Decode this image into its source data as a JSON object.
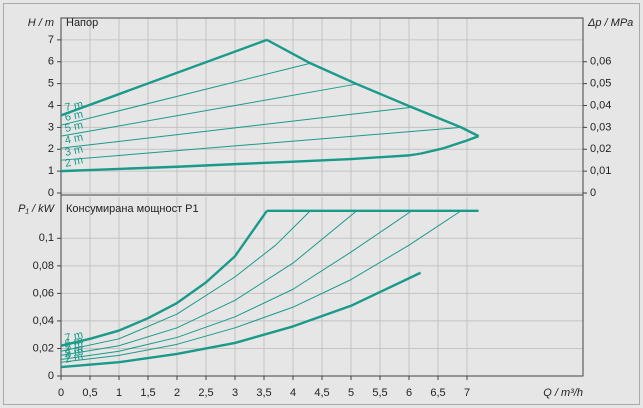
{
  "chart_data": [
    {
      "type": "line",
      "ylabel": "H / m",
      "title": "Напор",
      "y2label": "Δp / MPa",
      "xlim": [
        0,
        9
      ],
      "ylim": [
        0,
        8
      ],
      "yticks": [
        0,
        1,
        2,
        3,
        4,
        5,
        6,
        7
      ],
      "y2lim": [
        0,
        0.08
      ],
      "y2ticks": [
        0,
        {
          "value": 0.01,
          "label": "0,01"
        },
        {
          "value": 0.02,
          "label": "0,02"
        },
        {
          "value": 0.03,
          "label": "0,03"
        },
        {
          "value": 0.04,
          "label": "0,04"
        },
        {
          "value": 0.05,
          "label": "0,05"
        },
        {
          "value": 0.06,
          "label": "0,06"
        }
      ],
      "grid": true,
      "series": [
        {
          "name": "7 m",
          "color": "#1a9a8a",
          "bold": true,
          "x": [
            0,
            3.55
          ],
          "values": [
            3.55,
            7
          ]
        },
        {
          "color": "#1a9a8a",
          "bold": true,
          "x": [
            3.55,
            4.3,
            5.1,
            6.05,
            6.9,
            7.2
          ],
          "values": [
            7,
            5.93,
            4.98,
            3.92,
            3.0,
            2.6
          ]
        },
        {
          "name": "6 m",
          "color": "#1a9a8a",
          "bold": false,
          "x": [
            0,
            4.3
          ],
          "values": [
            3.1,
            5.93
          ]
        },
        {
          "name": "5 m",
          "color": "#1a9a8a",
          "bold": false,
          "x": [
            0,
            5.1
          ],
          "values": [
            2.6,
            4.98
          ]
        },
        {
          "name": "4 m",
          "color": "#1a9a8a",
          "bold": false,
          "x": [
            0,
            6.05
          ],
          "values": [
            2.05,
            3.92
          ]
        },
        {
          "name": "3 m",
          "color": "#1a9a8a",
          "bold": false,
          "x": [
            0,
            6.9
          ],
          "values": [
            1.5,
            3.0
          ]
        },
        {
          "name": "2 m",
          "color": "#1a9a8a",
          "bold": true,
          "x": [
            0,
            1,
            2,
            3,
            4,
            5,
            6,
            6.2
          ],
          "values": [
            1.0,
            1.1,
            1.2,
            1.32,
            1.43,
            1.55,
            1.72,
            1.8
          ]
        },
        {
          "color": "#1a9a8a",
          "bold": true,
          "x": [
            6.2,
            6.6,
            7.0,
            7.2
          ],
          "values": [
            1.8,
            2.05,
            2.4,
            2.6
          ]
        }
      ]
    },
    {
      "type": "line",
      "ylabel": "P₁ / kW",
      "title": "Консумирана мощност P1",
      "xlabel": "Q / m³/h",
      "xlim": [
        0,
        9
      ],
      "xticks": [
        0,
        {
          "value": 0.5,
          "label": "0,5"
        },
        1,
        {
          "value": 1.5,
          "label": "1,5"
        },
        2,
        {
          "value": 2.5,
          "label": "2,5"
        },
        3,
        {
          "value": 3.5,
          "label": "3,5"
        },
        4,
        {
          "value": 4.5,
          "label": "4,5"
        },
        5,
        {
          "value": 5.5,
          "label": "5,5"
        },
        6,
        {
          "value": 6.5,
          "label": "6,5"
        },
        7
      ],
      "ylim": [
        0,
        0.13
      ],
      "yticks": [
        0,
        {
          "value": 0.02,
          "label": "0,02"
        },
        {
          "value": 0.04,
          "label": "0,04"
        },
        {
          "value": 0.06,
          "label": "0,06"
        },
        {
          "value": 0.08,
          "label": "0,08"
        },
        {
          "value": 0.1,
          "label": "0,1"
        }
      ],
      "grid": true,
      "series": [
        {
          "name": "7 m",
          "color": "#1a9a8a",
          "bold": true,
          "x": [
            0,
            0.5,
            1,
            1.5,
            2,
            2.5,
            3,
            3.55
          ],
          "values": [
            0.022,
            0.027,
            0.033,
            0.042,
            0.053,
            0.068,
            0.087,
            0.12
          ]
        },
        {
          "color": "#1a9a8a",
          "bold": true,
          "x": [
            3.55,
            7.2
          ],
          "values": [
            0.12,
            0.12
          ]
        },
        {
          "name": "6 m",
          "color": "#1a9a8a",
          "bold": false,
          "x": [
            0,
            1,
            2,
            3,
            3.7,
            4.3
          ],
          "values": [
            0.018,
            0.027,
            0.045,
            0.072,
            0.095,
            0.12
          ]
        },
        {
          "name": "5 m",
          "color": "#1a9a8a",
          "bold": false,
          "x": [
            0,
            1,
            2,
            3,
            4,
            5.1
          ],
          "values": [
            0.015,
            0.022,
            0.035,
            0.055,
            0.082,
            0.12
          ]
        },
        {
          "name": "4 m",
          "color": "#1a9a8a",
          "bold": false,
          "x": [
            0,
            1,
            2,
            3,
            4,
            5,
            6.05
          ],
          "values": [
            0.012,
            0.018,
            0.028,
            0.043,
            0.063,
            0.09,
            0.12
          ]
        },
        {
          "name": "3 m",
          "color": "#1a9a8a",
          "bold": false,
          "x": [
            0,
            1,
            2,
            3,
            4,
            5,
            6,
            6.9
          ],
          "values": [
            0.01,
            0.015,
            0.023,
            0.035,
            0.05,
            0.07,
            0.095,
            0.12
          ]
        },
        {
          "name": "2 m",
          "color": "#1a9a8a",
          "bold": true,
          "x": [
            0,
            1,
            2,
            3,
            4,
            5,
            6.2
          ],
          "values": [
            0.0065,
            0.01,
            0.016,
            0.024,
            0.036,
            0.051,
            0.075
          ]
        }
      ]
    }
  ]
}
